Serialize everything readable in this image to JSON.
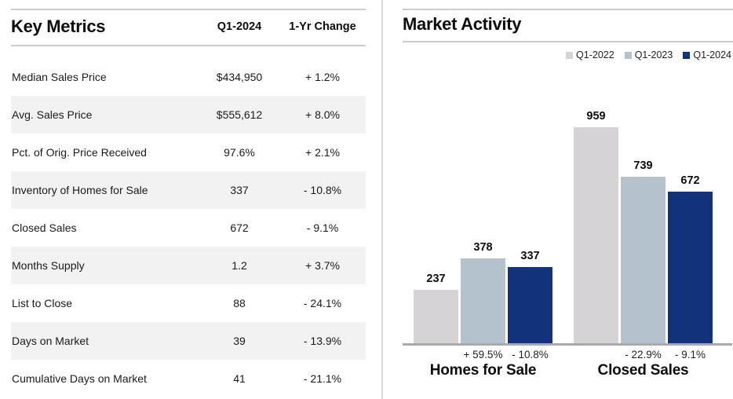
{
  "key_metrics": {
    "title": "Key Metrics",
    "columns": {
      "value": "Q1-2024",
      "change": "1-Yr Change"
    },
    "rows": [
      {
        "label": "Median Sales Price",
        "value": "$434,950",
        "change": "+ 1.2%"
      },
      {
        "label": "Avg. Sales Price",
        "value": "$555,612",
        "change": "+ 8.0%"
      },
      {
        "label": "Pct. of Orig. Price Received",
        "value": "97.6%",
        "change": "+ 2.1%"
      },
      {
        "label": "Inventory of Homes for Sale",
        "value": "337",
        "change": "- 10.8%"
      },
      {
        "label": "Closed Sales",
        "value": "672",
        "change": "- 9.1%"
      },
      {
        "label": "Months Supply",
        "value": "1.2",
        "change": "+ 3.7%"
      },
      {
        "label": "List to Close",
        "value": "88",
        "change": "- 24.1%"
      },
      {
        "label": "Days on Market",
        "value": "39",
        "change": "- 13.9%"
      },
      {
        "label": "Cumulative Days on Market",
        "value": "41",
        "change": "- 21.1%"
      }
    ]
  },
  "market_activity": {
    "title": "Market Activity"
  },
  "chart_data": {
    "type": "bar",
    "title": "Market Activity",
    "categories": [
      "Homes for Sale",
      "Closed Sales"
    ],
    "series": [
      {
        "name": "Q1-2022",
        "color": "#d6d3d7",
        "values": [
          237,
          959
        ]
      },
      {
        "name": "Q1-2023",
        "color": "#b3c2cd",
        "values": [
          378,
          739
        ]
      },
      {
        "name": "Q1-2024",
        "color": "#12327c",
        "values": [
          337,
          672
        ]
      }
    ],
    "pct_changes": [
      {
        "group": "Homes for Sale",
        "labels": [
          "",
          "+ 59.5%",
          "- 10.8%"
        ]
      },
      {
        "group": "Closed Sales",
        "labels": [
          "",
          "- 22.9%",
          "- 9.1%"
        ]
      }
    ],
    "ylim": [
      0,
      1000
    ],
    "grid": false,
    "legend_position": "top-right",
    "value_labels": true
  }
}
